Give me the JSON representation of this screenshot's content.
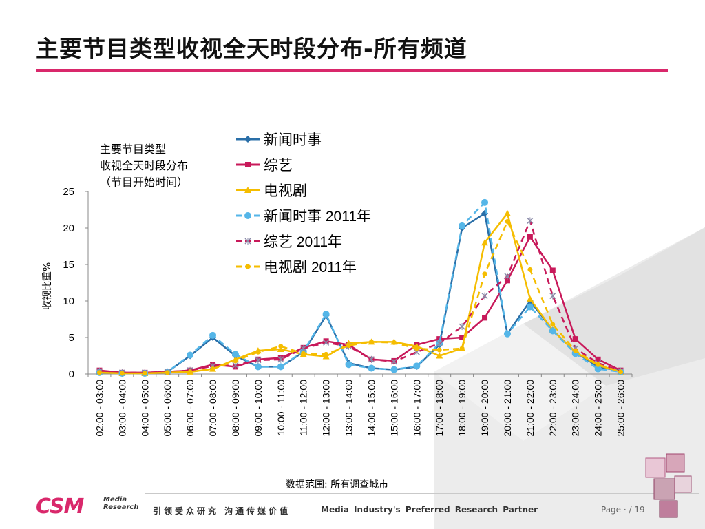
{
  "header": {
    "title": "主要节目类型收视全天时段分布-所有频道"
  },
  "chart_note": [
    "主要节目类型",
    "收视全天时段分布",
    "（节目开始时间）"
  ],
  "colors": {
    "accent": "#d9286b",
    "news": "#2a6fa8",
    "variety": "#c8195a",
    "drama": "#f5bd00",
    "news2011": "#55b6e8",
    "variety2011": "#c8195a",
    "drama2011": "#f5bd00"
  },
  "chart_data": {
    "type": "line",
    "ylabel": "收视比重%",
    "ylim": [
      0,
      25
    ],
    "yticks": [
      0,
      5,
      10,
      15,
      20,
      25
    ],
    "categories": [
      "02:00 - 03:00",
      "03:00 - 04:00",
      "04:00 - 05:00",
      "05:00 - 06:00",
      "06:00 - 07:00",
      "07:00 - 08:00",
      "08:00 - 09:00",
      "09:00 - 10:00",
      "10:00 - 11:00",
      "11:00 - 12:00",
      "12:00 - 13:00",
      "13:00 - 14:00",
      "14:00 - 15:00",
      "15:00 - 16:00",
      "16:00 - 17:00",
      "17:00 - 18:00",
      "18:00 - 19:00",
      "19:00 - 20:00",
      "20:00 - 21:00",
      "21:00 - 22:00",
      "22:00 - 23:00",
      "23:00 - 24:00",
      "24:00 - 25:00",
      "25:00 - 26:00"
    ],
    "series": [
      {
        "name": "新闻时事",
        "color": "#2a6fa8",
        "marker": "diamond",
        "dash": false,
        "values": [
          0.3,
          0.1,
          0.1,
          0.3,
          2.5,
          5.0,
          2.5,
          1.0,
          1.0,
          3.0,
          8.0,
          1.5,
          0.8,
          0.6,
          1.0,
          4.0,
          20.0,
          22.0,
          5.5,
          10.0,
          6.0,
          3.0,
          1.0,
          0.4
        ]
      },
      {
        "name": "综艺",
        "color": "#c8195a",
        "marker": "square",
        "dash": false,
        "values": [
          0.5,
          0.2,
          0.2,
          0.3,
          0.5,
          1.3,
          1.0,
          2.0,
          2.2,
          3.6,
          4.5,
          4.0,
          2.0,
          1.8,
          4.0,
          4.8,
          5.0,
          7.7,
          12.8,
          18.8,
          14.2,
          4.8,
          2.0,
          0.5
        ]
      },
      {
        "name": "电视剧",
        "color": "#f5bd00",
        "marker": "triangle",
        "dash": false,
        "values": [
          0.2,
          0.1,
          0.1,
          0.2,
          0.3,
          0.7,
          2.0,
          3.2,
          3.4,
          2.7,
          2.4,
          4.2,
          4.4,
          4.4,
          3.8,
          2.5,
          3.5,
          18.0,
          22.0,
          10.3,
          6.0,
          3.0,
          1.2,
          0.3
        ]
      },
      {
        "name": "新闻时事 2011年",
        "color": "#55b6e8",
        "marker": "circle",
        "dash": true,
        "values": [
          0.2,
          0.1,
          0.1,
          0.3,
          2.6,
          5.3,
          2.7,
          1.0,
          1.0,
          3.1,
          8.2,
          1.3,
          0.8,
          0.6,
          1.1,
          4.2,
          20.3,
          23.5,
          5.5,
          9.2,
          5.9,
          2.8,
          0.7,
          0.3
        ]
      },
      {
        "name": "综艺 2011年",
        "color": "#c8195a",
        "marker": "x",
        "dash": true,
        "values": [
          0.4,
          0.2,
          0.2,
          0.3,
          0.5,
          1.1,
          1.2,
          1.9,
          2.0,
          3.5,
          4.3,
          3.8,
          2.0,
          1.7,
          3.0,
          4.2,
          6.5,
          10.7,
          13.4,
          21.0,
          10.7,
          3.5,
          1.5,
          0.4
        ]
      },
      {
        "name": "电视剧 2011年",
        "color": "#f5bd00",
        "marker": "dot",
        "dash": true,
        "values": [
          0.2,
          0.1,
          0.1,
          0.2,
          0.3,
          0.7,
          1.8,
          3.0,
          3.8,
          2.8,
          2.7,
          3.9,
          4.4,
          4.3,
          3.5,
          3.3,
          3.5,
          13.7,
          20.9,
          14.3,
          6.8,
          3.2,
          1.3,
          0.3
        ]
      }
    ]
  },
  "footnote": "数据范围:  所有调查城市",
  "footer": {
    "logo_text": "CSM",
    "logo_sub": [
      "Media",
      "Research"
    ],
    "slogan": "引领受众研究 沟通传媒价值",
    "tagline": "Media Industry's Preferred Research Partner",
    "page_label": "Page · / 19"
  }
}
